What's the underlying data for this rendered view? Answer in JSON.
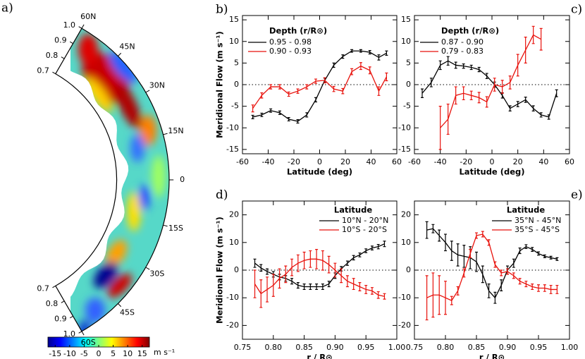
{
  "chart_data": [
    {
      "type": "wedge",
      "label": "a)",
      "rlim": [
        0.7,
        1.0
      ],
      "rticks": [
        0.7,
        0.8,
        0.9,
        {
          "value": 1.0,
          "label": "1.0"
        }
      ],
      "latticks": [
        {
          "value": 60,
          "label": "60N"
        },
        {
          "value": 45,
          "label": "45N"
        },
        {
          "value": 30,
          "label": "30N"
        },
        {
          "value": 15,
          "label": "15N"
        },
        0,
        {
          "value": -15,
          "label": "15S"
        },
        {
          "value": -30,
          "label": "30S"
        },
        {
          "value": -45,
          "label": "45S"
        },
        {
          "value": -60,
          "label": "60S"
        }
      ],
      "colorbar": {
        "clim": [
          -17.5,
          17.5
        ],
        "ticks": [
          -15,
          -10,
          -5,
          0,
          5,
          10,
          15
        ],
        "label": "m s⁻¹"
      }
    },
    {
      "type": "line",
      "label": "b)",
      "xlabel": "Latitude (deg)",
      "ylabel": "Meridional Flow (m s⁻¹)",
      "xlim": [
        -60,
        60
      ],
      "xticks": [
        -60,
        -40,
        -20,
        0,
        20,
        40,
        60
      ],
      "ylim": [
        -16,
        16
      ],
      "yticks": [
        -15,
        -10,
        -5,
        0,
        5,
        10,
        15
      ],
      "reference_line": 0,
      "legend": "upper left",
      "legend_title": "Depth (r/R⊙)",
      "series": [
        {
          "name": "0.95 - 0.98",
          "color": "#000000",
          "x": [
            -52,
            -45,
            -38,
            -31,
            -24,
            -17,
            -10,
            -3,
            4,
            11,
            18,
            25,
            32,
            39,
            46,
            52
          ],
          "values": [
            -7.5,
            -7,
            -6,
            -6.5,
            -8,
            -8.5,
            -7,
            -3.5,
            1,
            4.5,
            6.5,
            7.8,
            7.8,
            7.5,
            6.3,
            7.3
          ],
          "errors": [
            0.4,
            0.4,
            0.4,
            0.4,
            0.4,
            0.4,
            0.5,
            0.5,
            0.5,
            0.5,
            0.4,
            0.3,
            0.3,
            0.4,
            0.6,
            0.5
          ]
        },
        {
          "name": "0.90 - 0.93",
          "color": "#e8120c",
          "x": [
            -52,
            -45,
            -38,
            -31,
            -24,
            -17,
            -10,
            -3,
            4,
            11,
            18,
            25,
            32,
            39,
            46,
            52
          ],
          "values": [
            -5.5,
            -2.5,
            -0.5,
            -0.5,
            -2.2,
            -1.5,
            -0.5,
            0.8,
            1,
            -1,
            -1.5,
            3,
            4.3,
            3.3,
            -1.5,
            1.8
          ],
          "errors": [
            0.8,
            0.6,
            0.5,
            0.5,
            0.5,
            0.5,
            0.5,
            0.5,
            0.6,
            0.6,
            0.6,
            0.7,
            0.8,
            0.8,
            1,
            0.9
          ]
        }
      ]
    },
    {
      "type": "line",
      "label": "c)",
      "xlabel": "Latitude (deg)",
      "xlim": [
        -60,
        60
      ],
      "xticks": [
        -60,
        -40,
        -20,
        0,
        20,
        40,
        60
      ],
      "ylim": [
        -16,
        16
      ],
      "yticks": [
        -15,
        -10,
        -5,
        0,
        5,
        10,
        15
      ],
      "reference_line": 0,
      "legend": "upper left",
      "legend_title": "Depth (r/R⊙)",
      "series": [
        {
          "name": "0.87 - 0.90",
          "color": "#000000",
          "x": [
            -54,
            -47,
            -40,
            -34,
            -28,
            -22,
            -16,
            -10,
            -4,
            2,
            8,
            14,
            20,
            26,
            32,
            38,
            44,
            50
          ],
          "values": [
            -2,
            0.5,
            4.5,
            5.5,
            4.5,
            4.3,
            4,
            3.5,
            2,
            0,
            -2.5,
            -5.5,
            -4.5,
            -3.5,
            -5.5,
            -7,
            -7.5,
            -2
          ],
          "errors": [
            1,
            1,
            1,
            1,
            0.7,
            0.5,
            0.5,
            0.5,
            0.6,
            0.6,
            0.6,
            0.6,
            0.6,
            0.6,
            0.6,
            0.5,
            0.5,
            0.8
          ]
        },
        {
          "name": "0.79 - 0.83",
          "color": "#e8120c",
          "x": [
            -40,
            -34,
            -28,
            -22,
            -16,
            -10,
            -4,
            2,
            8,
            14,
            20,
            26,
            32,
            38
          ],
          "values": [
            -10,
            -8,
            -2.5,
            -2,
            -2.5,
            -3,
            -4,
            0,
            -0.5,
            0.5,
            4.5,
            8,
            11.5,
            10.5
          ],
          "errors": [
            5,
            3.5,
            2,
            1.5,
            1,
            1.2,
            1.2,
            1.5,
            1.5,
            1.5,
            2.5,
            3,
            2,
            2.5
          ]
        }
      ]
    },
    {
      "type": "line",
      "label": "d)",
      "xlabel": "r / R⊙",
      "ylabel": "Meridional Flow (m s⁻¹)",
      "xlim": [
        0.75,
        1.0
      ],
      "xticks": [
        {
          "value": 0.75,
          "label": "0.75"
        },
        {
          "value": 0.8,
          "label": "0.80"
        },
        0.85,
        {
          "value": 0.9,
          "label": "0.90"
        },
        0.95,
        {
          "value": 1.0,
          "label": "1.00"
        }
      ],
      "ylim": [
        -25,
        25
      ],
      "yticks": [
        -20,
        -10,
        0,
        10,
        20
      ],
      "reference_line": 0,
      "legend": "upper right",
      "legend_title": "Latitude",
      "series": [
        {
          "name": "10°N - 20°N",
          "color": "#000000",
          "x": [
            0.77,
            0.78,
            0.79,
            0.8,
            0.81,
            0.82,
            0.83,
            0.84,
            0.85,
            0.86,
            0.87,
            0.88,
            0.89,
            0.9,
            0.91,
            0.92,
            0.93,
            0.94,
            0.95,
            0.96,
            0.97,
            0.98
          ],
          "values": [
            2.5,
            0.8,
            -0.5,
            -1.5,
            -2.5,
            -3,
            -4,
            -5.5,
            -6,
            -6,
            -6,
            -6,
            -5,
            -2,
            0.5,
            2.5,
            4.5,
            5.5,
            7,
            8,
            8.5,
            9.5
          ],
          "errors": [
            1.5,
            1.2,
            1,
            1,
            1,
            1,
            1,
            1,
            1,
            1,
            1,
            1,
            1,
            1,
            0.8,
            0.8,
            0.8,
            0.7,
            0.7,
            0.7,
            0.8,
            1
          ]
        },
        {
          "name": "10°S - 20°S",
          "color": "#e8120c",
          "x": [
            0.77,
            0.78,
            0.79,
            0.8,
            0.81,
            0.82,
            0.83,
            0.84,
            0.85,
            0.86,
            0.87,
            0.88,
            0.89,
            0.9,
            0.91,
            0.92,
            0.93,
            0.94,
            0.95,
            0.96,
            0.97,
            0.98
          ],
          "values": [
            -5,
            -8.5,
            -7,
            -5.5,
            -3,
            -1.5,
            1,
            2.5,
            3.5,
            4,
            4,
            3.5,
            2,
            0,
            -2,
            -4,
            -5,
            -6,
            -7,
            -7.5,
            -9,
            -9.5
          ],
          "errors": [
            5,
            5,
            4.5,
            4,
            3.5,
            3,
            3,
            3,
            3,
            3,
            3.5,
            3.5,
            3,
            2.5,
            2.5,
            2,
            2,
            1.5,
            1.5,
            1.2,
            1.2,
            1
          ]
        }
      ]
    },
    {
      "type": "line",
      "label": "e)",
      "xlabel": "r / R⊙",
      "xlim": [
        0.75,
        1.0
      ],
      "xticks": [
        {
          "value": 0.75,
          "label": "0.75"
        },
        {
          "value": 0.8,
          "label": "0.80"
        },
        0.85,
        {
          "value": 0.9,
          "label": "0.90"
        },
        0.95,
        {
          "value": 1.0,
          "label": "1.00"
        }
      ],
      "ylim": [
        -25,
        25
      ],
      "yticks": [
        -20,
        -10,
        0,
        10,
        20
      ],
      "reference_line": 0,
      "legend": "upper right",
      "legend_title": "Latitude",
      "series": [
        {
          "name": "35°N - 45°N",
          "color": "#000000",
          "x": [
            0.77,
            0.78,
            0.79,
            0.8,
            0.81,
            0.82,
            0.83,
            0.84,
            0.85,
            0.86,
            0.87,
            0.88,
            0.89,
            0.9,
            0.91,
            0.92,
            0.93,
            0.94,
            0.95,
            0.96,
            0.97,
            0.98
          ],
          "values": [
            14.5,
            15,
            12.5,
            10,
            7,
            5.5,
            5,
            4.5,
            3,
            -1.5,
            -7.5,
            -10,
            -5.5,
            0,
            2.5,
            7,
            8.5,
            7.5,
            6,
            5,
            4.5,
            4
          ],
          "errors": [
            3,
            1.5,
            2,
            3,
            3.5,
            4,
            4,
            4,
            3.5,
            3,
            2.5,
            2,
            2,
            1.5,
            1.5,
            1,
            0.7,
            0.7,
            0.6,
            0.5,
            0.5,
            0.5
          ]
        },
        {
          "name": "35°S - 45°S",
          "color": "#e8120c",
          "x": [
            0.77,
            0.78,
            0.79,
            0.8,
            0.81,
            0.82,
            0.83,
            0.84,
            0.85,
            0.86,
            0.87,
            0.88,
            0.89,
            0.9,
            0.91,
            0.92,
            0.93,
            0.94,
            0.95,
            0.96,
            0.97,
            0.98
          ],
          "values": [
            -10,
            -9,
            -9,
            -10,
            -11,
            -7.5,
            -1,
            6,
            12.5,
            13,
            10,
            2,
            -1,
            -0.5,
            -2,
            -4,
            -5,
            -6,
            -6.5,
            -6.5,
            -7,
            -7
          ],
          "errors": [
            8,
            8,
            7,
            6,
            1.5,
            1.5,
            1.5,
            1.5,
            1,
            1,
            1,
            1,
            1,
            1,
            1,
            1,
            1,
            1,
            1.2,
            1.2,
            1.5,
            1.5
          ]
        }
      ]
    }
  ]
}
